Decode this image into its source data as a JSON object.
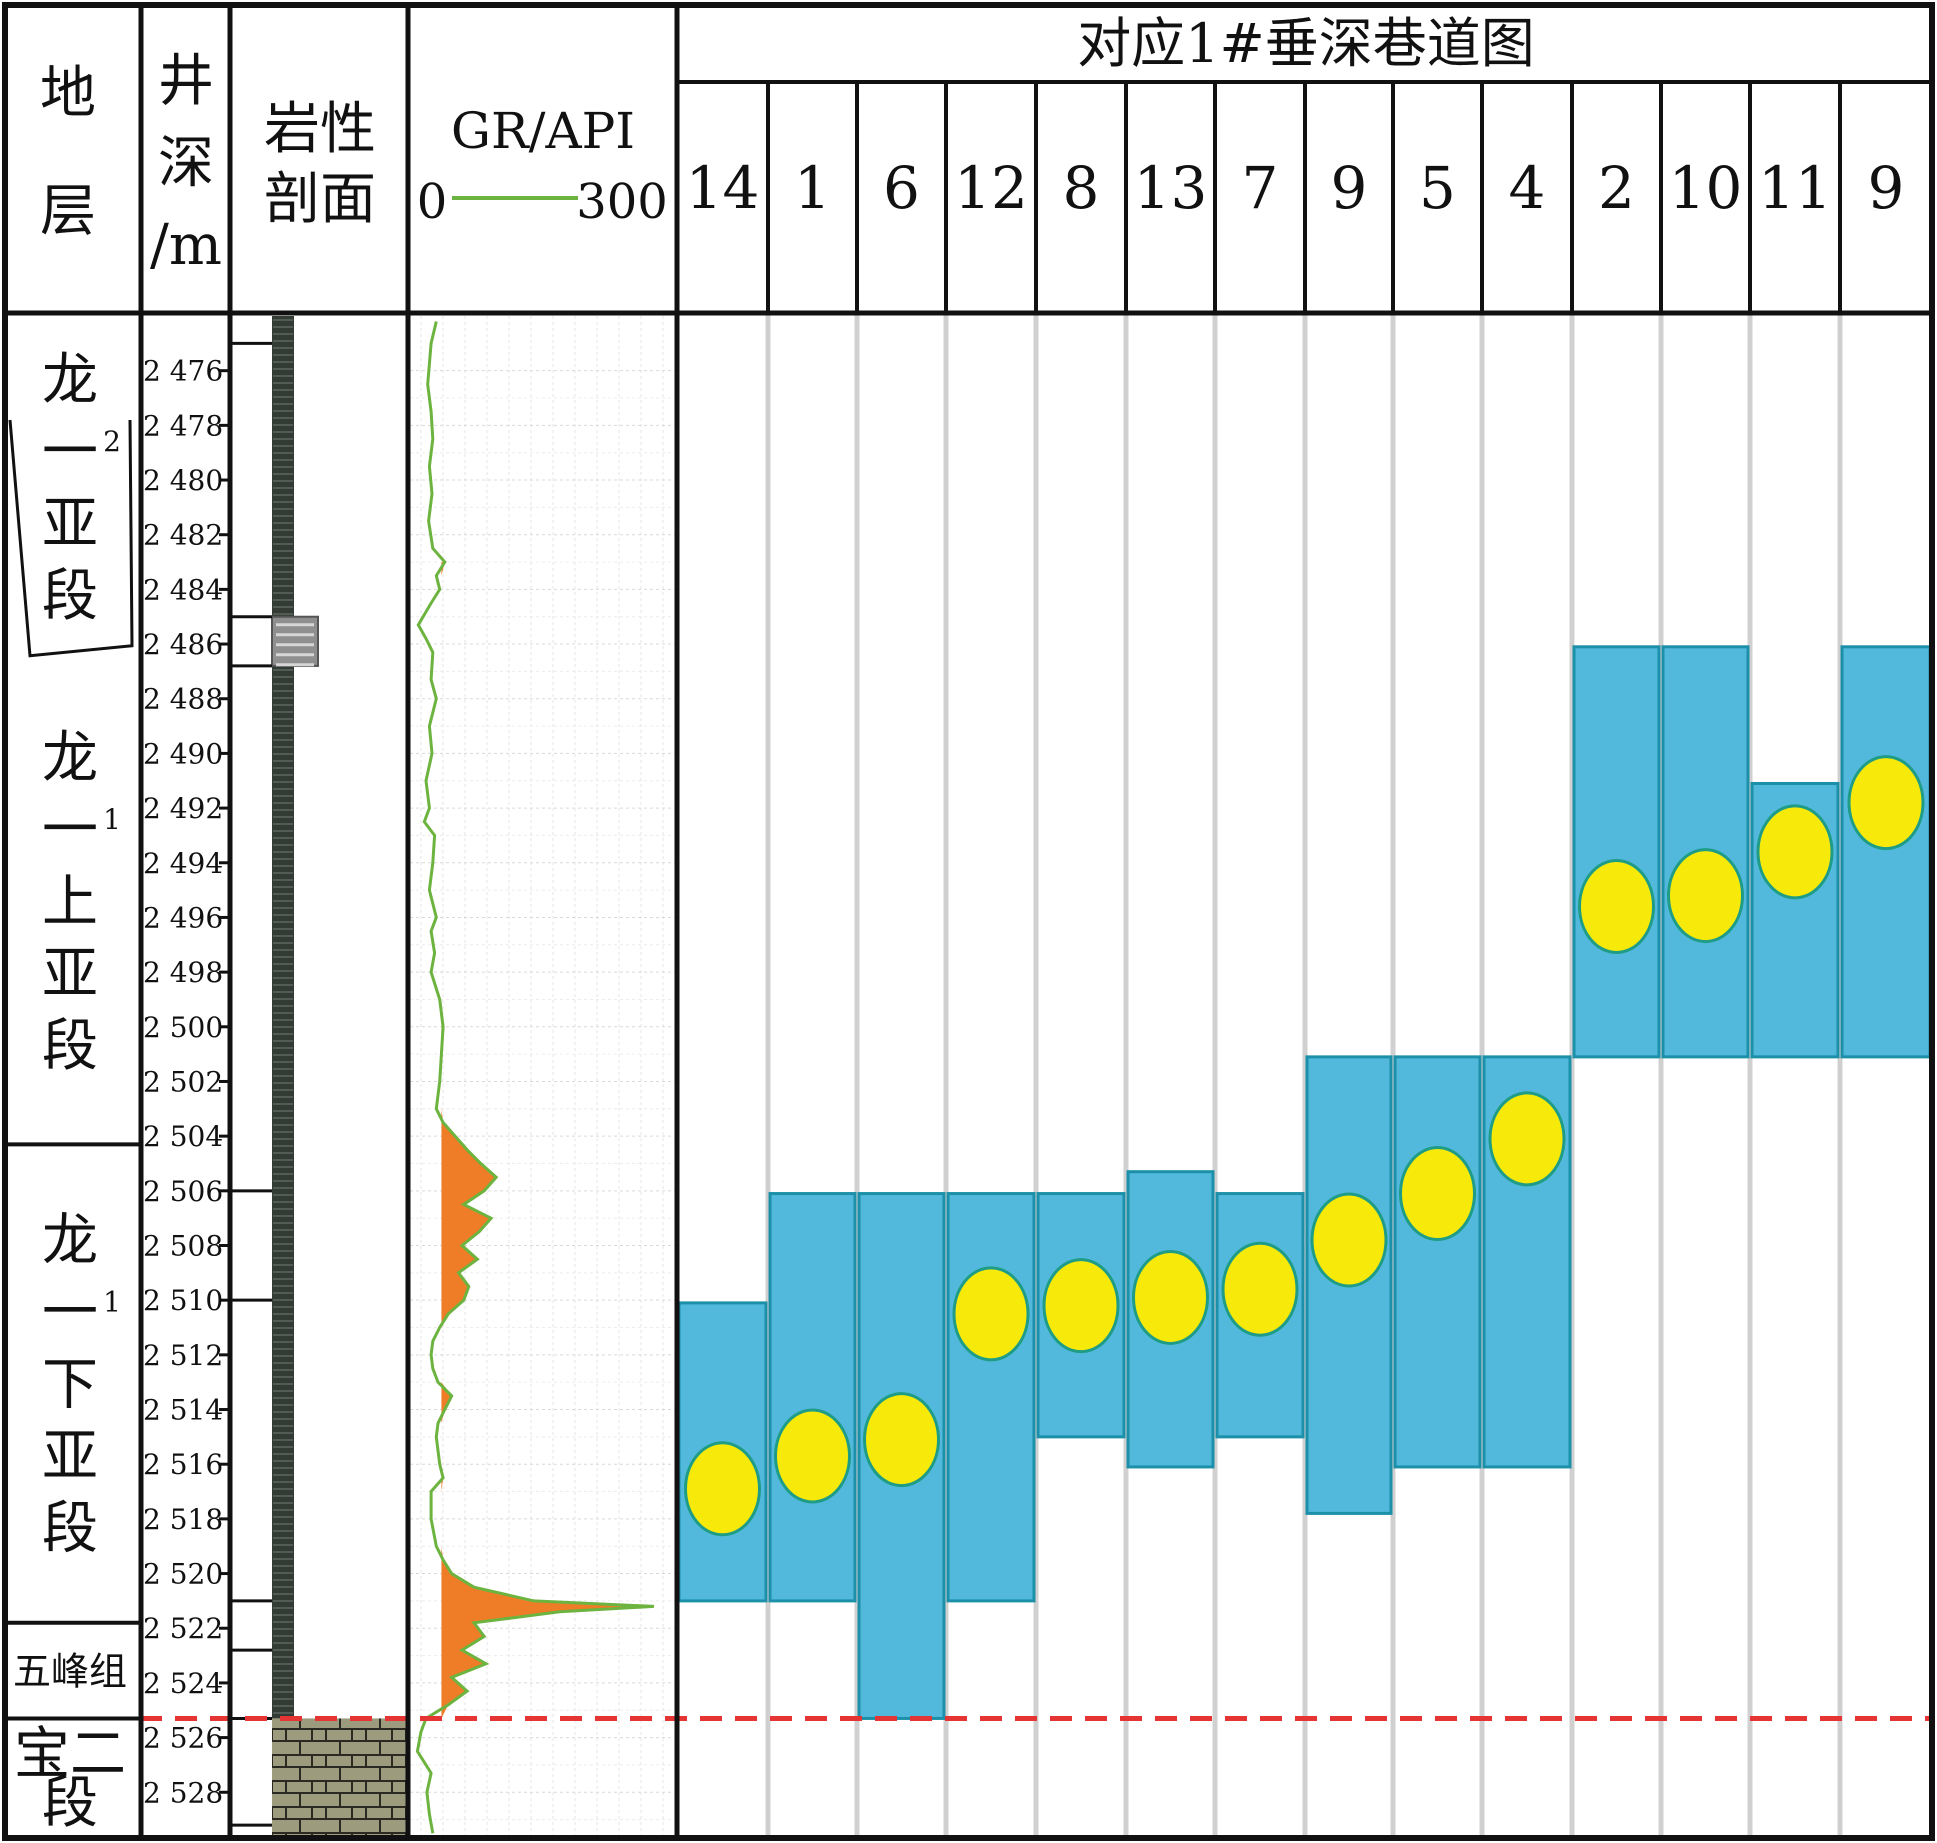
{
  "header": {
    "strata_title": [
      "地",
      "层"
    ],
    "depth_title": [
      "井",
      "深",
      "/m"
    ],
    "lithology_title": [
      "岩性",
      "剖面"
    ],
    "gr_title": "GR/API",
    "gr_scale_min": "0",
    "gr_scale_max": "300",
    "lane_title": "对应1#垂深巷道图"
  },
  "strata": [
    {
      "name": "龙一2亚段",
      "lines": [
        "龙",
        "一",
        "亚",
        "段"
      ],
      "superscript": "2",
      "top": 2474.0,
      "bottom": 2486.5
    },
    {
      "name": "龙一1上亚段",
      "lines": [
        "龙",
        "一",
        "上",
        "亚",
        "段"
      ],
      "superscript": "1",
      "top": 2486.5,
      "bottom": 2504.3
    },
    {
      "name": "龙一1下亚段",
      "lines": [
        "龙",
        "一",
        "下",
        "亚",
        "段"
      ],
      "superscript": "1",
      "top": 2504.3,
      "bottom": 2521.8
    },
    {
      "name": "五峰组",
      "lines": [
        "五峰组"
      ],
      "superscript": "",
      "top": 2521.8,
      "bottom": 2525.3
    },
    {
      "name": "宝二段",
      "lines": [
        "宝二",
        "段"
      ],
      "superscript": "",
      "top": 2525.3,
      "bottom": 2529.6
    }
  ],
  "depth_ticks": [
    "2 476",
    "2 478",
    "2 480",
    "2 482",
    "2 484",
    "2 486",
    "2 488",
    "2 490",
    "2 492",
    "2 494",
    "2 496",
    "2 498",
    "2 500",
    "2 502",
    "2 504",
    "2 506",
    "2 508",
    "2 510",
    "2 512",
    "2 514",
    "2 516",
    "2 518",
    "2 520",
    "2 522",
    "2 524",
    "2 526",
    "2 528"
  ],
  "chart_data": {
    "type": "diagram",
    "depth_axis": {
      "min": 2474.0,
      "max": 2529.6,
      "inverted": true
    },
    "gr_axis": {
      "min": 0,
      "max": 300
    },
    "gr_curve": [
      [
        2474.2,
        26
      ],
      [
        2475.0,
        20
      ],
      [
        2476.5,
        16
      ],
      [
        2477.5,
        20
      ],
      [
        2478.5,
        22
      ],
      [
        2479.5,
        18
      ],
      [
        2480.5,
        21
      ],
      [
        2481.5,
        17
      ],
      [
        2482.5,
        22
      ],
      [
        2483.0,
        36
      ],
      [
        2483.5,
        26
      ],
      [
        2484.0,
        30
      ],
      [
        2484.5,
        20
      ],
      [
        2485.3,
        5
      ],
      [
        2485.8,
        14
      ],
      [
        2486.3,
        22
      ],
      [
        2487.3,
        20
      ],
      [
        2488.0,
        26
      ],
      [
        2489.0,
        18
      ],
      [
        2490.0,
        21
      ],
      [
        2491.0,
        14
      ],
      [
        2492.0,
        18
      ],
      [
        2492.5,
        12
      ],
      [
        2493.0,
        24
      ],
      [
        2494.0,
        22
      ],
      [
        2495.0,
        18
      ],
      [
        2496.0,
        26
      ],
      [
        2496.5,
        20
      ],
      [
        2497.3,
        24
      ],
      [
        2498.0,
        20
      ],
      [
        2499.0,
        30
      ],
      [
        2500.0,
        34
      ],
      [
        2501.0,
        32
      ],
      [
        2502.0,
        30
      ],
      [
        2503.0,
        26
      ],
      [
        2503.5,
        34
      ],
      [
        2504.0,
        48
      ],
      [
        2504.5,
        62
      ],
      [
        2505.0,
        78
      ],
      [
        2505.5,
        96
      ],
      [
        2506.0,
        82
      ],
      [
        2506.5,
        58
      ],
      [
        2507.0,
        90
      ],
      [
        2507.5,
        76
      ],
      [
        2508.0,
        56
      ],
      [
        2508.5,
        74
      ],
      [
        2509.0,
        52
      ],
      [
        2509.5,
        64
      ],
      [
        2510.0,
        58
      ],
      [
        2510.5,
        40
      ],
      [
        2511.0,
        30
      ],
      [
        2511.5,
        22
      ],
      [
        2512.0,
        20
      ],
      [
        2512.5,
        22
      ],
      [
        2513.0,
        28
      ],
      [
        2513.5,
        44
      ],
      [
        2514.0,
        36
      ],
      [
        2514.5,
        28
      ],
      [
        2515.0,
        26
      ],
      [
        2516.0,
        30
      ],
      [
        2516.5,
        34
      ],
      [
        2517.0,
        20
      ],
      [
        2518.0,
        20
      ],
      [
        2519.0,
        26
      ],
      [
        2519.5,
        34
      ],
      [
        2520.0,
        44
      ],
      [
        2520.5,
        70
      ],
      [
        2521.0,
        140
      ],
      [
        2521.2,
        280
      ],
      [
        2521.4,
        170
      ],
      [
        2521.8,
        70
      ],
      [
        2522.3,
        82
      ],
      [
        2522.8,
        56
      ],
      [
        2523.3,
        84
      ],
      [
        2523.8,
        44
      ],
      [
        2524.3,
        62
      ],
      [
        2524.8,
        40
      ],
      [
        2525.3,
        14
      ],
      [
        2525.8,
        8
      ],
      [
        2526.5,
        4
      ],
      [
        2527.3,
        20
      ],
      [
        2528.0,
        15
      ],
      [
        2528.8,
        18
      ],
      [
        2529.5,
        22
      ]
    ],
    "gr_fill_threshold": 4,
    "lithology_blocks": [
      {
        "top": 2485.0,
        "bottom": 2486.8,
        "type": "gray-section"
      },
      {
        "top": 2525.3,
        "bottom": 2529.6,
        "type": "limestone"
      }
    ],
    "lithology_ticks": [
      2475.0,
      2485.0,
      2486.8,
      2506.0,
      2510.0,
      2521.0,
      2522.8,
      2525.3,
      2529.2
    ],
    "lanes": [
      {
        "label": "14",
        "top": 2510.1,
        "bottom": 2521.0,
        "point": 2516.9
      },
      {
        "label": "1",
        "top": 2506.1,
        "bottom": 2521.0,
        "point": 2515.7
      },
      {
        "label": "6",
        "top": 2506.1,
        "bottom": 2525.3,
        "point": 2515.1
      },
      {
        "label": "12",
        "top": 2506.1,
        "bottom": 2521.0,
        "point": 2510.5
      },
      {
        "label": "8",
        "top": 2506.1,
        "bottom": 2515.0,
        "point": 2510.2
      },
      {
        "label": "13",
        "top": 2505.3,
        "bottom": 2516.1,
        "point": 2509.9
      },
      {
        "label": "7",
        "top": 2506.1,
        "bottom": 2515.0,
        "point": 2509.6
      },
      {
        "label": "9",
        "top": 2501.1,
        "bottom": 2517.8,
        "point": 2507.8
      },
      {
        "label": "5",
        "top": 2501.1,
        "bottom": 2516.1,
        "point": 2506.1
      },
      {
        "label": "4",
        "top": 2501.1,
        "bottom": 2516.1,
        "point": 2504.1
      },
      {
        "label": "2",
        "top": 2486.1,
        "bottom": 2501.1,
        "point": 2495.6
      },
      {
        "label": "10",
        "top": 2486.1,
        "bottom": 2501.1,
        "point": 2495.2
      },
      {
        "label": "11",
        "top": 2491.1,
        "bottom": 2501.1,
        "point": 2493.6
      },
      {
        "label": "9",
        "top": 2486.1,
        "bottom": 2501.1,
        "point": 2491.8
      }
    ],
    "boundary_depth": 2525.3
  },
  "colors": {
    "lane_fill": "#52b9dc",
    "lane_stroke": "#1b90a8",
    "point_fill": "#f7ea0a",
    "point_stroke": "#1e9c86",
    "gr_line": "#6db33f",
    "gr_fill": "#ef7d27",
    "boundary": "#e53434",
    "grid": "#d0d0d0",
    "lithology_dark": "#333b35",
    "limestone": "#9c9b7e"
  }
}
